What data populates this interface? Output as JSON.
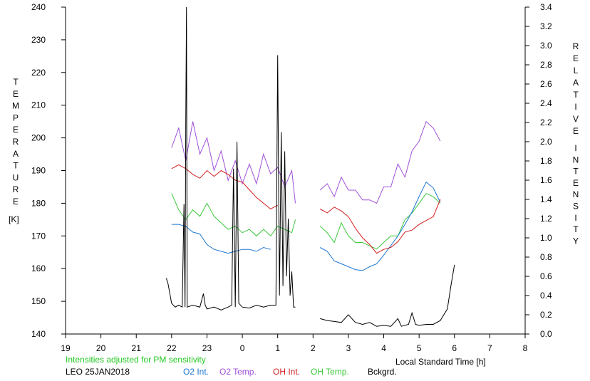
{
  "chart_data": {
    "type": "line",
    "left_axis": {
      "label_letters": [
        "T",
        "E",
        "M",
        "P",
        "E",
        "R",
        "A",
        "T",
        "U",
        "R",
        "E"
      ],
      "unit": "[K]",
      "range": [
        140,
        240
      ],
      "ticks": [
        "140",
        "150",
        "160",
        "170",
        "180",
        "190",
        "200",
        "210",
        "220",
        "230",
        "240"
      ]
    },
    "right_axis": {
      "label_letters_1": [
        "R",
        "E",
        "L",
        "A",
        "T",
        "I",
        "V",
        "E"
      ],
      "label_letters_2": [
        "I",
        "N",
        "T",
        "E",
        "N",
        "S",
        "I",
        "T",
        "Y"
      ],
      "range": [
        0,
        3.4
      ],
      "ticks": [
        "0.0",
        "0.2",
        "0.4",
        "0.6",
        "0.8",
        "1.0",
        "1.2",
        "1.4",
        "1.6",
        "1.8",
        "2.0",
        "2.2",
        "2.4",
        "2.6",
        "2.8",
        "3.0",
        "3.2",
        "3.4"
      ]
    },
    "x_axis": {
      "label": "Local Standard Time [h]",
      "range": [
        19,
        32
      ],
      "ticks": [
        "19",
        "20",
        "21",
        "22",
        "23",
        "0",
        "1",
        "2",
        "3",
        "4",
        "5",
        "6",
        "7",
        "8"
      ]
    },
    "note": "Intensities adjusted for PM sensitivity",
    "station": "LEO 25JAN2018",
    "legend": [
      {
        "name": "O2 Int.",
        "color": "#1e78d2"
      },
      {
        "name": "O2 Temp.",
        "color": "#a050d8"
      },
      {
        "name": "OH Int.",
        "color": "#d21e1e"
      },
      {
        "name": "OH Temp.",
        "color": "#3cc83c"
      },
      {
        "name": "Bckgrd.",
        "color": "#000000"
      }
    ],
    "series": [
      {
        "name": "O2 Temp.",
        "axis": "left",
        "color": "#a050d8",
        "segments": [
          [
            [
              22.0,
              197
            ],
            [
              22.2,
              203
            ],
            [
              22.4,
              193
            ],
            [
              22.6,
              205
            ],
            [
              22.8,
              195
            ],
            [
              23.0,
              200
            ],
            [
              23.2,
              190
            ],
            [
              23.4,
              196
            ],
            [
              23.6,
              187
            ],
            [
              23.8,
              193
            ],
            [
              24.0,
              186
            ],
            [
              24.2,
              192
            ],
            [
              24.4,
              186
            ],
            [
              24.6,
              195
            ],
            [
              24.8,
              189
            ],
            [
              25.0,
              191
            ],
            [
              25.2,
              185
            ],
            [
              25.4,
              190
            ],
            [
              25.5,
              180
            ]
          ],
          [
            [
              26.2,
              184
            ],
            [
              26.4,
              186
            ],
            [
              26.6,
              182
            ],
            [
              26.8,
              188
            ],
            [
              27.0,
              184
            ],
            [
              27.2,
              184
            ],
            [
              27.4,
              181
            ],
            [
              27.6,
              181
            ],
            [
              27.8,
              180
            ],
            [
              28.0,
              185
            ],
            [
              28.2,
              185
            ],
            [
              28.4,
              192
            ],
            [
              28.6,
              188
            ],
            [
              28.8,
              196
            ],
            [
              29.0,
              199
            ],
            [
              29.2,
              205
            ],
            [
              29.4,
              203
            ],
            [
              29.6,
              199
            ]
          ]
        ]
      },
      {
        "name": "OH Temp.",
        "axis": "left",
        "color": "#3cc83c",
        "segments": [
          [
            [
              22.0,
              183
            ],
            [
              22.2,
              178
            ],
            [
              22.4,
              175
            ],
            [
              22.6,
              178
            ],
            [
              22.8,
              176
            ],
            [
              23.0,
              180
            ],
            [
              23.2,
              176
            ],
            [
              23.4,
              174
            ],
            [
              23.6,
              172
            ],
            [
              23.8,
              173
            ],
            [
              24.0,
              171
            ],
            [
              24.2,
              172
            ],
            [
              24.4,
              170
            ],
            [
              24.6,
              172
            ],
            [
              24.8,
              170
            ],
            [
              25.0,
              173
            ],
            [
              25.2,
              172
            ],
            [
              25.4,
              171
            ],
            [
              25.5,
              175
            ]
          ],
          [
            [
              26.2,
              173
            ],
            [
              26.4,
              171
            ],
            [
              26.6,
              168
            ],
            [
              26.8,
              174
            ],
            [
              27.0,
              170
            ],
            [
              27.2,
              168
            ],
            [
              27.4,
              168
            ],
            [
              27.6,
              167
            ],
            [
              27.8,
              166
            ],
            [
              28.0,
              168
            ],
            [
              28.2,
              170
            ],
            [
              28.4,
              170
            ],
            [
              28.6,
              175
            ],
            [
              28.8,
              177
            ],
            [
              29.0,
              180
            ],
            [
              29.2,
              183
            ],
            [
              29.4,
              182
            ],
            [
              29.6,
              180
            ]
          ]
        ]
      },
      {
        "name": "O2 Int.",
        "axis": "right",
        "color": "#1e78d2",
        "segments": [
          [
            [
              22.0,
              1.14
            ],
            [
              22.2,
              1.14
            ],
            [
              22.4,
              1.12
            ],
            [
              22.6,
              1.06
            ],
            [
              22.8,
              1.04
            ],
            [
              23.0,
              0.93
            ],
            [
              23.2,
              0.88
            ],
            [
              23.4,
              0.86
            ],
            [
              23.6,
              0.84
            ],
            [
              23.8,
              0.86
            ],
            [
              24.0,
              0.88
            ],
            [
              24.2,
              0.88
            ],
            [
              24.4,
              0.86
            ],
            [
              24.6,
              0.9
            ],
            [
              24.8,
              0.88
            ]
          ],
          [
            [
              26.2,
              0.9
            ],
            [
              26.4,
              0.86
            ],
            [
              26.6,
              0.76
            ],
            [
              26.8,
              0.73
            ],
            [
              27.0,
              0.7
            ],
            [
              27.2,
              0.67
            ],
            [
              27.4,
              0.66
            ],
            [
              27.6,
              0.7
            ],
            [
              27.8,
              0.73
            ],
            [
              28.0,
              0.82
            ],
            [
              28.2,
              0.92
            ],
            [
              28.4,
              1.02
            ],
            [
              28.6,
              1.14
            ],
            [
              28.8,
              1.27
            ],
            [
              29.0,
              1.43
            ],
            [
              29.2,
              1.58
            ],
            [
              29.4,
              1.52
            ],
            [
              29.6,
              1.37
            ]
          ]
        ]
      },
      {
        "name": "OH Int.",
        "axis": "right",
        "color": "#d21e1e",
        "segments": [
          [
            [
              22.0,
              1.72
            ],
            [
              22.2,
              1.76
            ],
            [
              22.4,
              1.72
            ],
            [
              22.6,
              1.66
            ],
            [
              22.8,
              1.62
            ],
            [
              23.0,
              1.7
            ],
            [
              23.2,
              1.64
            ],
            [
              23.4,
              1.7
            ],
            [
              23.6,
              1.66
            ],
            [
              23.8,
              1.6
            ],
            [
              24.0,
              1.58
            ],
            [
              24.2,
              1.5
            ],
            [
              24.4,
              1.42
            ],
            [
              24.6,
              1.36
            ],
            [
              24.8,
              1.3
            ],
            [
              25.0,
              1.34
            ]
          ],
          [
            [
              26.2,
              1.3
            ],
            [
              26.4,
              1.26
            ],
            [
              26.6,
              1.32
            ],
            [
              26.8,
              1.28
            ],
            [
              27.0,
              1.22
            ],
            [
              27.2,
              1.1
            ],
            [
              27.4,
              1.0
            ],
            [
              27.6,
              0.93
            ],
            [
              27.8,
              0.84
            ],
            [
              28.0,
              0.88
            ],
            [
              28.2,
              0.9
            ],
            [
              28.4,
              0.96
            ],
            [
              28.6,
              1.06
            ],
            [
              28.8,
              1.08
            ],
            [
              29.0,
              1.14
            ],
            [
              29.2,
              1.18
            ],
            [
              29.4,
              1.22
            ],
            [
              29.6,
              1.4
            ]
          ]
        ]
      },
      {
        "name": "Bckgrd.",
        "axis": "right",
        "color": "#000000",
        "segments": [
          [
            [
              21.85,
              0.58
            ],
            [
              21.9,
              0.52
            ],
            [
              22.0,
              0.32
            ],
            [
              22.1,
              0.28
            ],
            [
              22.2,
              0.3
            ],
            [
              22.3,
              0.28
            ],
            [
              22.35,
              1.35
            ],
            [
              22.38,
              0.28
            ],
            [
              22.4,
              2.2
            ],
            [
              22.42,
              3.4
            ],
            [
              22.44,
              0.28
            ],
            [
              22.6,
              0.3
            ],
            [
              22.8,
              0.28
            ],
            [
              22.9,
              0.42
            ],
            [
              22.95,
              0.3
            ],
            [
              23.0,
              0.26
            ],
            [
              23.2,
              0.28
            ],
            [
              23.4,
              0.25
            ],
            [
              23.6,
              0.28
            ],
            [
              23.7,
              0.3
            ],
            [
              23.75,
              1.72
            ],
            [
              23.8,
              0.28
            ],
            [
              23.85,
              2.0
            ],
            [
              23.9,
              0.32
            ],
            [
              24.0,
              0.28
            ],
            [
              24.2,
              0.27
            ],
            [
              24.4,
              0.3
            ],
            [
              24.6,
              0.28
            ],
            [
              24.8,
              0.3
            ],
            [
              24.95,
              0.3
            ],
            [
              25.0,
              2.9
            ],
            [
              25.05,
              0.4
            ],
            [
              25.1,
              2.1
            ],
            [
              25.15,
              0.5
            ],
            [
              25.2,
              1.9
            ],
            [
              25.25,
              0.6
            ],
            [
              25.3,
              1.2
            ],
            [
              25.35,
              0.4
            ],
            [
              25.4,
              0.65
            ],
            [
              25.45,
              0.28
            ],
            [
              25.5,
              0.28
            ]
          ],
          [
            [
              26.2,
              0.16
            ],
            [
              26.4,
              0.14
            ],
            [
              26.6,
              0.13
            ],
            [
              26.8,
              0.12
            ],
            [
              27.0,
              0.2
            ],
            [
              27.2,
              0.12
            ],
            [
              27.4,
              0.1
            ],
            [
              27.6,
              0.12
            ],
            [
              27.8,
              0.08
            ],
            [
              28.0,
              0.09
            ],
            [
              28.2,
              0.08
            ],
            [
              28.4,
              0.16
            ],
            [
              28.5,
              0.08
            ],
            [
              28.7,
              0.1
            ],
            [
              28.8,
              0.22
            ],
            [
              28.9,
              0.1
            ],
            [
              29.0,
              0.09
            ],
            [
              29.2,
              0.1
            ],
            [
              29.4,
              0.1
            ],
            [
              29.6,
              0.14
            ],
            [
              29.8,
              0.26
            ],
            [
              29.9,
              0.5
            ],
            [
              30.0,
              0.72
            ]
          ]
        ]
      }
    ]
  }
}
